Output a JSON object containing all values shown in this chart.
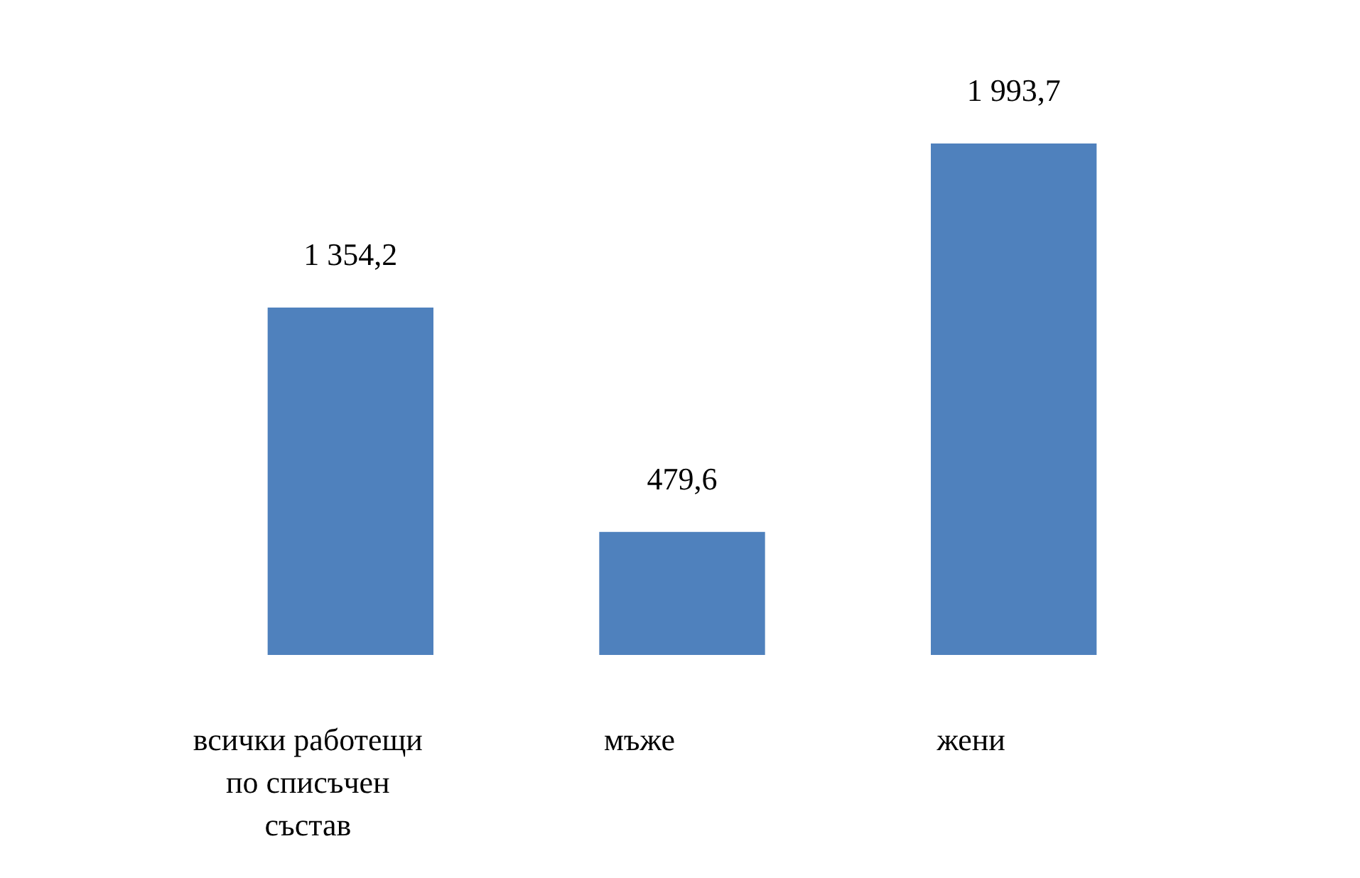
{
  "chart_data": {
    "type": "bar",
    "categories": [
      "всички работещи по списъчен състав",
      "мъже",
      "жени"
    ],
    "values": [
      1354.2,
      479.6,
      1993.7
    ],
    "color": "#4f81bd",
    "value_labels": [
      "1 354,2",
      "479,6",
      "1 993,7"
    ]
  }
}
